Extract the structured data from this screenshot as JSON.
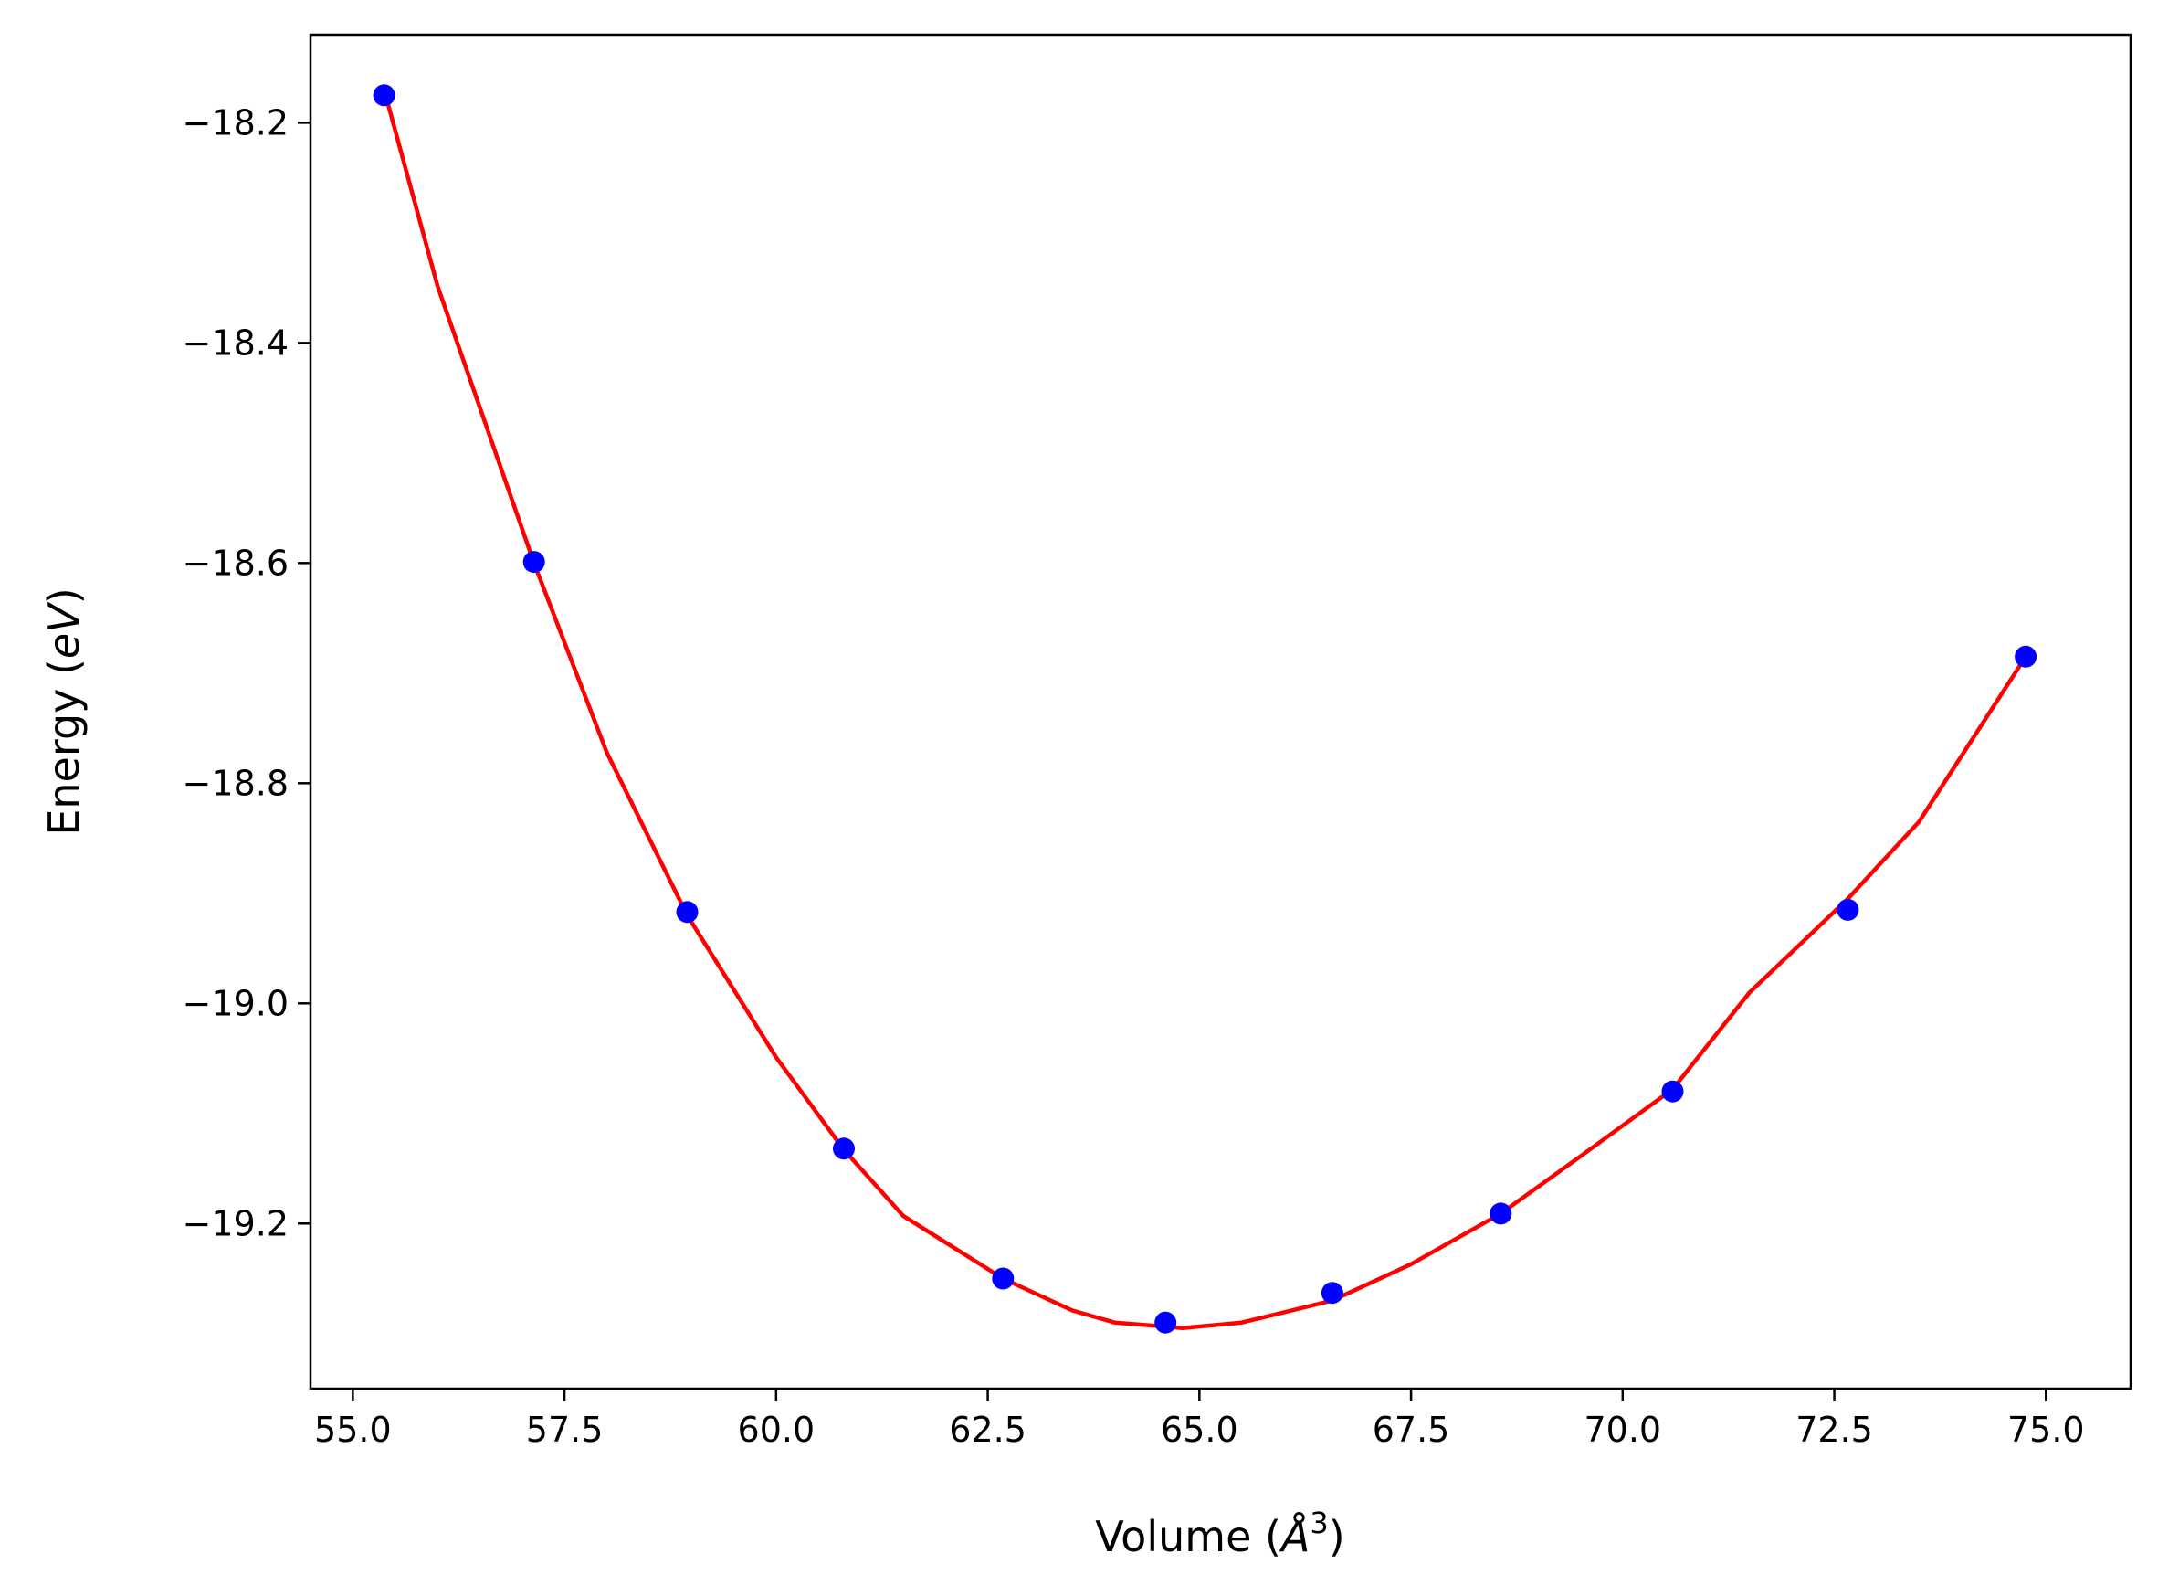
{
  "chart_data": {
    "type": "scatter",
    "xlabel": "Volume (Å3)",
    "xlabel_parts": {
      "prefix": "Volume (",
      "symbol": "Å",
      "exponent": "3",
      "suffix": ")"
    },
    "ylabel": "Energy (eV)",
    "ylabel_parts": {
      "prefix": "Energy (",
      "unit": "eV",
      "suffix": ")"
    },
    "xlim": [
      54.5,
      76.0
    ],
    "ylim": [
      -19.35,
      -18.12
    ],
    "x_ticks": [
      55.0,
      57.5,
      60.0,
      62.5,
      65.0,
      67.5,
      70.0,
      72.5,
      75.0
    ],
    "x_tick_labels": [
      "55.0",
      "57.5",
      "60.0",
      "62.5",
      "65.0",
      "67.5",
      "70.0",
      "72.5",
      "75.0"
    ],
    "y_ticks": [
      -18.2,
      -18.4,
      -18.6,
      -18.8,
      -19.0,
      -19.2
    ],
    "y_tick_labels": [
      "−18.2",
      "−18.4",
      "−18.6",
      "−18.8",
      "−19.0",
      "−19.2"
    ],
    "grid": false,
    "legend": "none",
    "series": [
      {
        "kind": "points",
        "color": "#0000ff",
        "x": [
          55.37,
          57.14,
          58.95,
          60.8,
          62.68,
          64.6,
          66.57,
          68.56,
          70.59,
          72.66,
          74.76
        ],
        "y": [
          -18.175,
          -18.599,
          -18.917,
          -19.132,
          -19.25,
          -19.29,
          -19.263,
          -19.191,
          -19.08,
          -18.915,
          -18.685
        ]
      },
      {
        "kind": "line",
        "color": "#ff0000",
        "x": [
          55.37,
          56.0,
          57.14,
          58.0,
          58.95,
          60.0,
          60.8,
          61.5,
          62.68,
          63.5,
          64.0,
          64.8,
          65.5,
          66.57,
          67.5,
          68.56,
          69.5,
          70.59,
          71.5,
          72.66,
          73.5,
          74.76
        ],
        "y": [
          -18.17,
          -18.348,
          -18.6,
          -18.772,
          -18.92,
          -19.049,
          -19.133,
          -19.193,
          -19.25,
          -19.279,
          -19.29,
          -19.295,
          -19.29,
          -19.27,
          -19.237,
          -19.191,
          -19.139,
          -19.078,
          -18.99,
          -18.905,
          -18.835,
          -18.685
        ]
      }
    ]
  }
}
